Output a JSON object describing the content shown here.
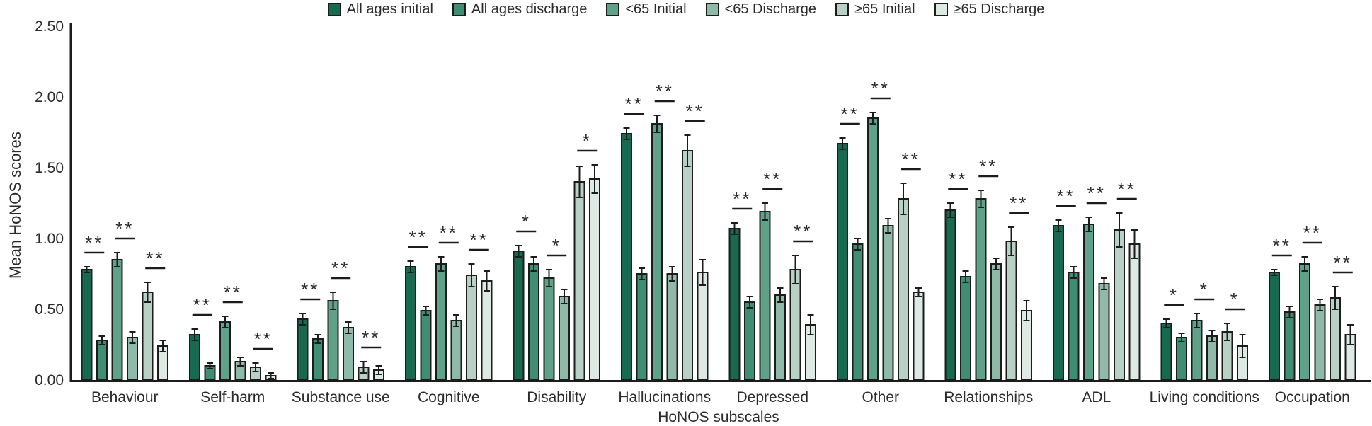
{
  "chart_data": {
    "type": "bar",
    "title": "",
    "xlabel": "HoNOS subscales",
    "ylabel": "Mean HoNOS scores",
    "ylim": [
      0,
      2.5
    ],
    "ytick_labels": [
      "0.00",
      "0.50",
      "1.00",
      "1.50",
      "2.00",
      "2.50"
    ],
    "grid": false,
    "legend_position": "top-center",
    "error_bars": true,
    "categories": [
      "Behaviour",
      "Self-harm",
      "Substance use",
      "Cognitive",
      "Disability",
      "Hallucinations",
      "Depressed",
      "Other",
      "Relationships",
      "ADL",
      "Living conditions",
      "Occupation"
    ],
    "series": [
      {
        "name": "All ages initial",
        "color": "#176a50",
        "values": [
          0.78,
          0.32,
          0.43,
          0.8,
          0.91,
          1.74,
          1.07,
          1.67,
          1.2,
          1.09,
          0.4,
          0.76
        ],
        "errors": [
          0.02,
          0.04,
          0.04,
          0.04,
          0.04,
          0.04,
          0.04,
          0.04,
          0.05,
          0.04,
          0.03,
          0.02
        ]
      },
      {
        "name": "All ages discharge",
        "color": "#3f8d72",
        "values": [
          0.28,
          0.1,
          0.29,
          0.49,
          0.82,
          0.75,
          0.55,
          0.96,
          0.73,
          0.76,
          0.3,
          0.48
        ],
        "errors": [
          0.03,
          0.02,
          0.03,
          0.03,
          0.05,
          0.04,
          0.04,
          0.04,
          0.04,
          0.04,
          0.03,
          0.04
        ]
      },
      {
        "name": "<65 Initial",
        "color": "#5fa189",
        "values": [
          0.85,
          0.41,
          0.56,
          0.82,
          0.72,
          1.81,
          1.19,
          1.85,
          1.28,
          1.1,
          0.42,
          0.82
        ],
        "errors": [
          0.05,
          0.04,
          0.06,
          0.05,
          0.06,
          0.06,
          0.06,
          0.04,
          0.06,
          0.05,
          0.05,
          0.05
        ]
      },
      {
        "name": "<65 Discharge",
        "color": "#8fbaa9",
        "values": [
          0.3,
          0.13,
          0.37,
          0.42,
          0.59,
          0.75,
          0.6,
          1.09,
          0.82,
          0.68,
          0.31,
          0.53
        ],
        "errors": [
          0.04,
          0.03,
          0.04,
          0.04,
          0.05,
          0.05,
          0.05,
          0.05,
          0.04,
          0.04,
          0.04,
          0.04
        ]
      },
      {
        "name": "≥65 Initial",
        "color": "#b8d0c5",
        "values": [
          0.62,
          0.09,
          0.09,
          0.74,
          1.4,
          1.62,
          0.78,
          1.28,
          0.98,
          1.06,
          0.34,
          0.58
        ],
        "errors": [
          0.07,
          0.03,
          0.04,
          0.08,
          0.11,
          0.11,
          0.1,
          0.11,
          0.1,
          0.12,
          0.06,
          0.08
        ]
      },
      {
        "name": "≥65 Discharge",
        "color": "#dde9e3",
        "values": [
          0.24,
          0.03,
          0.07,
          0.7,
          1.42,
          0.76,
          0.39,
          0.62,
          0.49,
          0.96,
          0.24,
          0.32
        ],
        "errors": [
          0.04,
          0.02,
          0.03,
          0.07,
          0.1,
          0.09,
          0.07,
          0.03,
          0.07,
          0.1,
          0.08,
          0.07
        ]
      }
    ],
    "significance_pairs_note": "markers shown above each initial/discharge pair: [all-ages, <65, >=65]",
    "significance": [
      {
        "category": "Behaviour",
        "pairs": [
          "**",
          "**",
          "**"
        ]
      },
      {
        "category": "Self-harm",
        "pairs": [
          "**",
          "**",
          "**"
        ]
      },
      {
        "category": "Substance use",
        "pairs": [
          "**",
          "**",
          "**"
        ]
      },
      {
        "category": "Cognitive",
        "pairs": [
          "**",
          "**",
          "**"
        ]
      },
      {
        "category": "Disability",
        "pairs": [
          "*",
          "*",
          "*"
        ]
      },
      {
        "category": "Hallucinations",
        "pairs": [
          "**",
          "**",
          "**"
        ]
      },
      {
        "category": "Depressed",
        "pairs": [
          "**",
          "**",
          "**"
        ]
      },
      {
        "category": "Other",
        "pairs": [
          "**",
          "**",
          "**"
        ]
      },
      {
        "category": "Relationships",
        "pairs": [
          "**",
          "**",
          "**"
        ]
      },
      {
        "category": "ADL",
        "pairs": [
          "**",
          "**",
          "**"
        ]
      },
      {
        "category": "Living conditions",
        "pairs": [
          "*",
          "*",
          "*"
        ]
      },
      {
        "category": "Occupation",
        "pairs": [
          "**",
          "**",
          "**"
        ]
      }
    ],
    "colors": {
      "axis": "#1c1c1c",
      "bar_outline": "#1c1c1c",
      "error_bar": "#1c1c1c",
      "text": "#2b2b2b"
    }
  }
}
